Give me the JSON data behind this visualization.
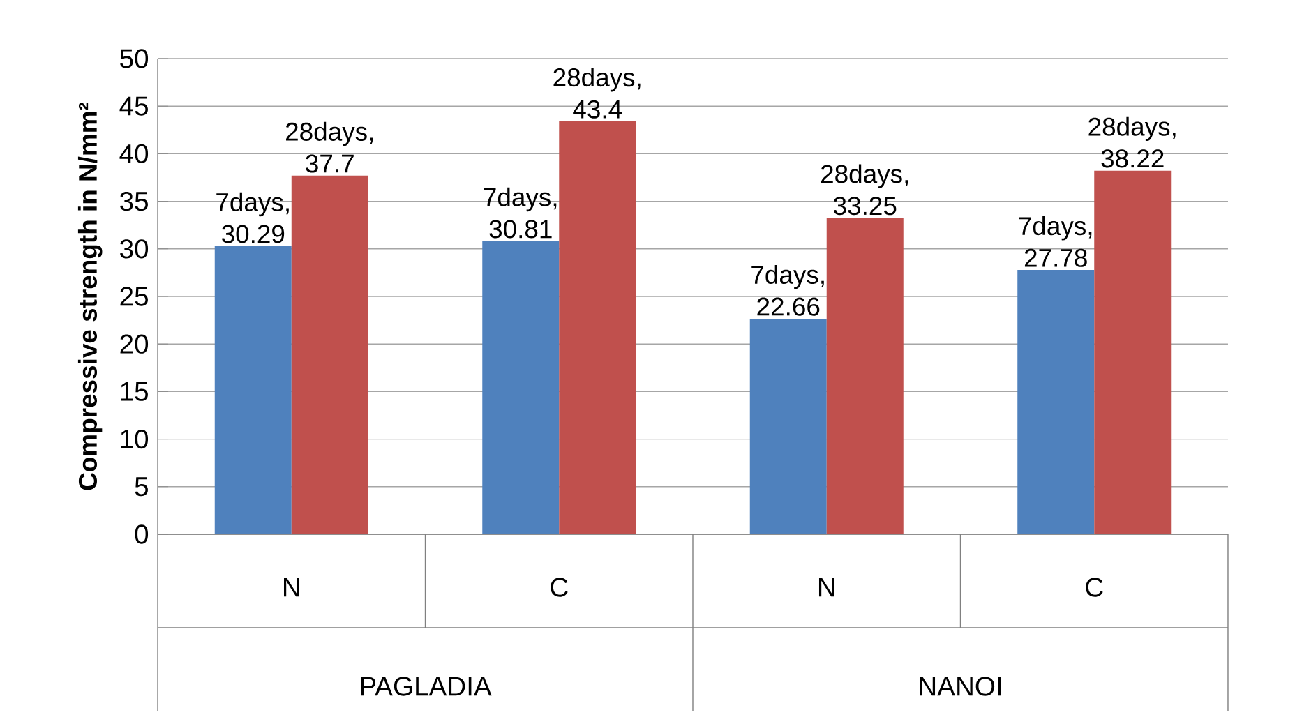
{
  "chart_data": {
    "type": "bar",
    "ylabel": "Compressive strength in N/mm²",
    "categories": [
      "N",
      "C",
      "N",
      "C"
    ],
    "series": [
      {
        "color": "#4f81bd",
        "values": [
          30.29,
          30.81,
          22.66,
          27.78
        ],
        "value_labels": [
          "7days, 30.29",
          "7days, 30.81",
          "7days, 22.66",
          "7days, 27.78"
        ]
      },
      {
        "color": "#c0504d",
        "values": [
          37.7,
          43.4,
          33.25,
          38.22
        ],
        "value_labels": [
          "28days, 37.7",
          "28days, 43.4",
          "28days, 33.25",
          "28days, 38.22"
        ]
      }
    ],
    "ylim": [
      0,
      50
    ],
    "yticks": [
      0,
      5,
      10,
      15,
      20,
      25,
      30,
      35,
      40,
      45,
      50
    ],
    "grid": "y",
    "annotations": [
      "PAGLADIA",
      "NANOI"
    ]
  }
}
